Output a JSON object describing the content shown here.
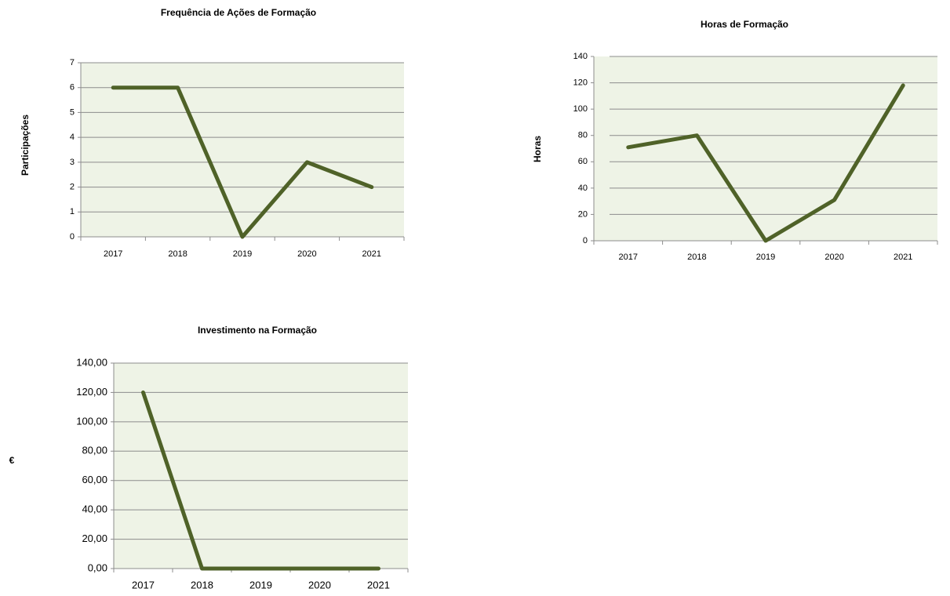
{
  "chart_data": [
    {
      "type": "line",
      "title": "Frequência de Ações de Formação",
      "y_label": "Participações",
      "categories": [
        "2017",
        "2018",
        "2019",
        "2020",
        "2021"
      ],
      "series": [
        {
          "name": "Participações",
          "color": "#4f6228",
          "values": [
            6,
            6,
            0,
            3,
            2
          ]
        }
      ],
      "ylim": [
        0,
        7
      ],
      "yticks": [
        0,
        1,
        2,
        3,
        4,
        5,
        6,
        7
      ],
      "grid": true
    },
    {
      "type": "line",
      "title": "Horas de Formação",
      "y_label": "Horas",
      "categories": [
        "2017",
        "2018",
        "2019",
        "2020",
        "2021"
      ],
      "series": [
        {
          "name": "Horas",
          "color": "#4f6228",
          "values": [
            71,
            80,
            0,
            31,
            118
          ]
        }
      ],
      "ylim": [
        0,
        140
      ],
      "yticks": [
        0,
        20,
        40,
        60,
        80,
        100,
        120,
        140
      ],
      "grid": true
    },
    {
      "type": "line",
      "title": "Investimento na Formação",
      "y_label": "€",
      "categories": [
        "2017",
        "2018",
        "2019",
        "2020",
        "2021"
      ],
      "series": [
        {
          "name": "€",
          "color": "#4f6228",
          "values": [
            120,
            0,
            0,
            0,
            0
          ]
        }
      ],
      "ylim": [
        0,
        140
      ],
      "yticks": [
        {
          "value": 0,
          "label": "0,00"
        },
        {
          "value": 20,
          "label": "20,00"
        },
        {
          "value": 40,
          "label": "40,00"
        },
        {
          "value": 60,
          "label": "60,00"
        },
        {
          "value": 80,
          "label": "80,00"
        },
        {
          "value": 100,
          "label": "100,00"
        },
        {
          "value": 120,
          "label": "120,00"
        },
        {
          "value": 140,
          "label": "140,00"
        }
      ],
      "grid": true
    }
  ]
}
